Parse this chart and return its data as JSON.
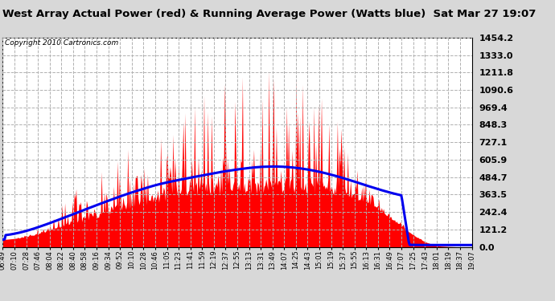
{
  "title": "West Array Actual Power (red) & Running Average Power (Watts blue)  Sat Mar 27 19:07",
  "copyright": "Copyright 2010 Cartronics.com",
  "y_max": 1454.2,
  "y_min": 0.0,
  "y_ticks": [
    0.0,
    121.2,
    242.4,
    363.5,
    484.7,
    605.9,
    727.1,
    848.3,
    969.4,
    1090.6,
    1211.8,
    1333.0,
    1454.2
  ],
  "background_color": "#d8d8d8",
  "plot_bg_color": "#ffffff",
  "red_color": "#ff0000",
  "blue_color": "#0000ee",
  "grid_color": "#b0b0b0",
  "time_labels": [
    "06:49",
    "07:10",
    "07:28",
    "07:46",
    "08:04",
    "08:22",
    "08:40",
    "08:58",
    "09:16",
    "09:34",
    "09:52",
    "10:10",
    "10:28",
    "10:46",
    "11:05",
    "11:23",
    "11:41",
    "11:59",
    "12:19",
    "12:37",
    "12:55",
    "13:13",
    "13:31",
    "13:49",
    "14:07",
    "14:25",
    "14:43",
    "15:01",
    "15:19",
    "15:37",
    "15:55",
    "16:13",
    "16:31",
    "16:49",
    "17:07",
    "17:25",
    "17:43",
    "18:01",
    "18:19",
    "18:37",
    "19:07"
  ],
  "n_points": 500,
  "base_envelope": [
    50,
    55,
    60,
    70,
    80,
    90,
    105,
    120,
    140,
    155,
    170,
    185,
    200,
    215,
    230,
    245,
    258,
    270,
    282,
    295,
    305,
    315,
    325,
    335,
    342,
    350,
    355,
    358,
    360,
    362,
    363,
    363,
    363,
    363,
    363,
    363,
    363,
    363,
    363,
    363,
    363,
    362,
    360,
    355,
    345,
    330,
    310,
    285,
    255,
    220,
    180,
    140,
    100,
    65,
    35,
    15,
    5,
    2,
    0,
    0,
    0
  ],
  "spike_envelope": [
    0,
    0,
    10,
    20,
    40,
    80,
    120,
    160,
    200,
    240,
    280,
    310,
    340,
    360,
    380,
    400,
    430,
    460,
    490,
    510,
    530,
    560,
    580,
    620,
    660,
    700,
    730,
    760,
    790,
    820,
    840,
    860,
    870,
    870,
    870,
    870,
    860,
    840,
    810,
    770,
    720,
    660,
    590,
    510,
    420,
    330,
    250,
    180,
    120,
    80,
    50,
    30,
    15,
    8,
    3,
    1,
    0,
    0,
    0,
    0,
    0
  ],
  "avg_line": [
    50,
    58,
    68,
    80,
    95,
    112,
    130,
    150,
    170,
    192,
    215,
    237,
    258,
    278,
    298,
    318,
    338,
    356,
    374,
    392,
    408,
    422,
    436,
    450,
    464,
    477,
    490,
    502,
    514,
    524,
    534,
    543,
    551,
    558,
    563,
    568,
    572,
    575,
    577,
    578,
    578,
    577,
    574,
    570,
    564,
    557,
    548,
    538,
    527,
    515,
    502,
    489,
    0,
    0,
    0,
    0,
    0,
    0,
    0,
    0,
    0
  ]
}
